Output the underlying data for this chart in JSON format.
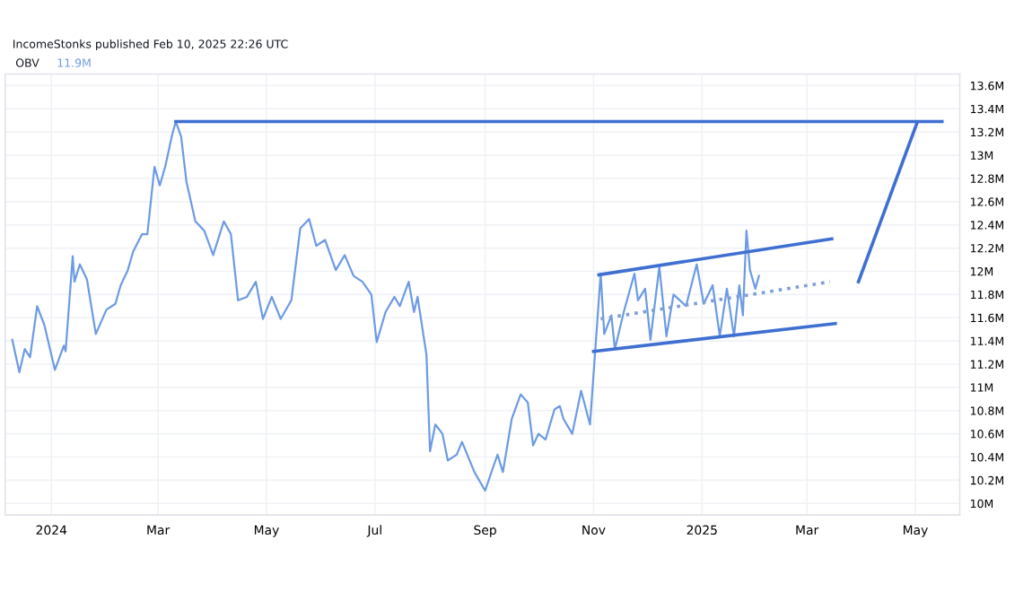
{
  "chart_data": {
    "type": "line",
    "title": "OBV",
    "annotations": [
      "IncomeStonks published Feb 10, 2025 22:26 UTC",
      "11.9M"
    ],
    "xlim": [
      "2023-12-06",
      "2025-05-26"
    ],
    "xticks": [
      {
        "value": "2024-01-01",
        "label": "2024"
      },
      {
        "value": "2024-03-01",
        "label": "Mar"
      },
      {
        "value": "2024-05-01",
        "label": "May"
      },
      {
        "value": "2024-07-01",
        "label": "Jul"
      },
      {
        "value": "2024-09-01",
        "label": "Sep"
      },
      {
        "value": "2024-11-01",
        "label": "Nov"
      },
      {
        "value": "2025-01-01",
        "label": "2025"
      },
      {
        "value": "2025-03-01",
        "label": "Mar"
      },
      {
        "value": "2025-05-01",
        "label": "May"
      }
    ],
    "ylim": [
      9.9,
      13.7
    ],
    "yticks": [
      {
        "value": 10,
        "label": "10M"
      },
      {
        "value": 10.2,
        "label": "10.2M"
      },
      {
        "value": 10.4,
        "label": "10.4M"
      },
      {
        "value": 10.6,
        "label": "10.6M"
      },
      {
        "value": 10.8,
        "label": "10.8M"
      },
      {
        "value": 11,
        "label": "11M"
      },
      {
        "value": 11.2,
        "label": "11.2M"
      },
      {
        "value": 11.4,
        "label": "11.4M"
      },
      {
        "value": 11.6,
        "label": "11.6M"
      },
      {
        "value": 11.8,
        "label": "11.8M"
      },
      {
        "value": 12,
        "label": "12M"
      },
      {
        "value": 12.2,
        "label": "12.2M"
      },
      {
        "value": 12.4,
        "label": "12.4M"
      },
      {
        "value": 12.6,
        "label": "12.6M"
      },
      {
        "value": 12.8,
        "label": "12.8M"
      },
      {
        "value": 13,
        "label": "13M"
      },
      {
        "value": 13.2,
        "label": "13.2M"
      },
      {
        "value": 13.4,
        "label": "13.4M"
      },
      {
        "value": 13.6,
        "label": "13.6M"
      }
    ],
    "grid": true,
    "series": [
      {
        "color": "#6d9be3",
        "x": [
          "2023-12-10",
          "2023-12-14",
          "2023-12-17",
          "2023-12-20",
          "2023-12-24",
          "2023-12-28",
          "2024-01-03",
          "2024-01-08",
          "2024-01-09",
          "2024-01-13",
          "2024-01-14",
          "2024-01-17",
          "2024-01-21",
          "2024-01-26",
          "2024-02-01",
          "2024-02-06",
          "2024-02-09",
          "2024-02-13",
          "2024-02-16",
          "2024-02-21",
          "2024-02-24",
          "2024-02-28",
          "2024-03-02",
          "2024-03-05",
          "2024-03-09",
          "2024-03-11",
          "2024-03-14",
          "2024-03-17",
          "2024-03-22",
          "2024-03-27",
          "2024-04-01",
          "2024-04-07",
          "2024-04-11",
          "2024-04-15",
          "2024-04-20",
          "2024-04-25",
          "2024-04-29",
          "2024-05-04",
          "2024-05-09",
          "2024-05-15",
          "2024-05-20",
          "2024-05-25",
          "2024-05-29",
          "2024-06-03",
          "2024-06-09",
          "2024-06-14",
          "2024-06-19",
          "2024-06-24",
          "2024-06-29",
          "2024-07-02",
          "2024-07-07",
          "2024-07-12",
          "2024-07-15",
          "2024-07-20",
          "2024-07-23",
          "2024-07-25",
          "2024-07-30",
          "2024-08-01",
          "2024-08-04",
          "2024-08-08",
          "2024-08-11",
          "2024-08-16",
          "2024-08-19",
          "2024-08-26",
          "2024-09-01",
          "2024-09-05",
          "2024-09-08",
          "2024-09-11",
          "2024-09-16",
          "2024-09-21",
          "2024-09-25",
          "2024-09-28",
          "2024-10-01",
          "2024-10-05",
          "2024-10-10",
          "2024-10-13",
          "2024-10-15",
          "2024-10-20",
          "2024-10-25",
          "2024-10-30",
          "2024-11-02",
          "2024-11-05",
          "2024-11-07",
          "2024-11-11",
          "2024-11-13",
          "2024-11-18",
          "2024-11-24",
          "2024-11-26",
          "2024-11-30",
          "2024-12-03",
          "2024-12-08",
          "2024-12-12",
          "2024-12-16",
          "2024-12-23",
          "2024-12-29",
          "2025-01-02",
          "2025-01-07",
          "2025-01-11",
          "2025-01-15",
          "2025-01-19",
          "2025-01-22",
          "2025-01-24",
          "2025-01-26",
          "2025-01-28",
          "2025-01-31",
          "2025-02-02"
        ],
        "values": [
          11.41,
          11.13,
          11.33,
          11.26,
          11.7,
          11.54,
          11.15,
          11.36,
          11.31,
          12.13,
          11.91,
          12.06,
          11.93,
          11.46,
          11.67,
          11.72,
          11.88,
          12.01,
          12.17,
          12.32,
          12.32,
          12.9,
          12.74,
          12.9,
          13.18,
          13.29,
          13.16,
          12.77,
          12.43,
          12.35,
          12.14,
          12.43,
          12.32,
          11.75,
          11.78,
          11.91,
          11.59,
          11.78,
          11.59,
          11.75,
          12.37,
          12.45,
          12.22,
          12.27,
          12.01,
          12.14,
          11.96,
          11.91,
          11.8,
          11.39,
          11.65,
          11.78,
          11.7,
          11.91,
          11.65,
          11.78,
          11.28,
          10.45,
          10.68,
          10.6,
          10.37,
          10.42,
          10.53,
          10.27,
          10.11,
          10.29,
          10.42,
          10.27,
          10.73,
          10.94,
          10.87,
          10.5,
          10.6,
          10.55,
          10.81,
          10.84,
          10.73,
          10.6,
          10.97,
          10.68,
          11.33,
          11.98,
          11.46,
          11.62,
          11.33,
          11.65,
          11.98,
          11.75,
          11.85,
          11.41,
          12.04,
          11.44,
          11.8,
          11.7,
          12.06,
          11.72,
          11.88,
          11.44,
          11.85,
          11.44,
          11.88,
          11.62,
          12.35,
          12.01,
          11.85,
          11.96
        ]
      },
      {
        "color": "#3f6fd1",
        "x": [
          "2024-03-11",
          "2025-05-16"
        ],
        "values": [
          13.29,
          13.29
        ]
      },
      {
        "color": "#3f6fd1",
        "x": [
          "2024-11-04",
          "2025-03-15"
        ],
        "values": [
          11.97,
          12.28
        ]
      },
      {
        "color": "#3f6fd1",
        "x": [
          "2024-11-01",
          "2025-03-17"
        ],
        "values": [
          11.31,
          11.55
        ]
      },
      {
        "color": "#7f9fd8",
        "line_style": "dotted",
        "x": [
          "2024-11-05",
          "2025-03-14"
        ],
        "values": [
          11.59,
          11.91
        ]
      },
      {
        "color": "#3f6fd1",
        "x": [
          "2025-03-30",
          "2025-05-02"
        ],
        "values": [
          11.91,
          13.28
        ]
      }
    ]
  }
}
